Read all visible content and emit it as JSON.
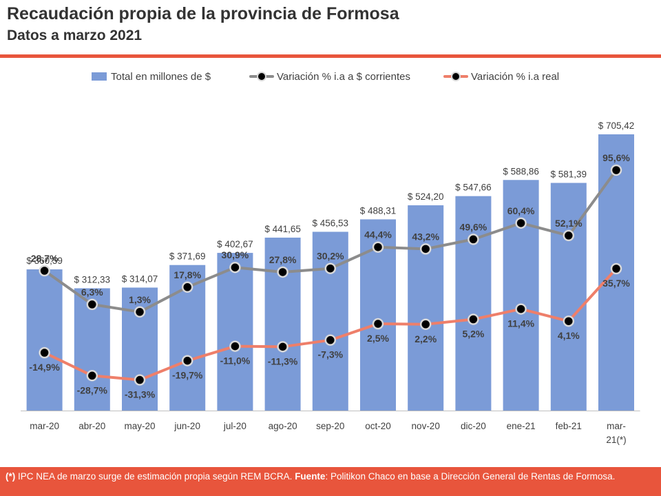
{
  "header": {
    "title": "Recaudación propia de la provincia de Formosa",
    "subtitle": "Datos a marzo 2021"
  },
  "colors": {
    "accent": "#e8553c",
    "bars": "#7b9bd7",
    "line_corrientes": "#8c8c8c",
    "line_real": "#ee7f6a"
  },
  "chart_data": {
    "type": "bar",
    "categories": [
      "mar-20",
      "abr-20",
      "may-20",
      "jun-20",
      "jul-20",
      "ago-20",
      "sep-20",
      "oct-20",
      "nov-20",
      "dic-20",
      "ene-21",
      "feb-21",
      "mar-21(*)"
    ],
    "series": [
      {
        "name": "Total en millones de $",
        "type": "bar",
        "values": [
          360.59,
          312.33,
          314.07,
          371.69,
          402.67,
          441.65,
          456.53,
          488.31,
          524.2,
          547.66,
          588.86,
          581.39,
          705.42
        ],
        "labels": [
          "$ 360,59",
          "$ 312,33",
          "$ 314,07",
          "$ 371,69",
          "$ 402,67",
          "$ 441,65",
          "$ 456,53",
          "$ 488,31",
          "$ 524,20",
          "$ 547,66",
          "$ 588,86",
          "$ 581,39",
          "$ 705,42"
        ]
      },
      {
        "name": "Variación % i.a a $ corrientes",
        "type": "line",
        "values": [
          28.7,
          6.3,
          1.3,
          17.8,
          30.9,
          27.8,
          30.2,
          44.4,
          43.2,
          49.6,
          60.4,
          52.1,
          95.6
        ],
        "labels": [
          "28,7%",
          "6,3%",
          "1,3%",
          "17,8%",
          "30,9%",
          "27,8%",
          "30,2%",
          "44,4%",
          "43,2%",
          "49,6%",
          "60,4%",
          "52,1%",
          "95,6%"
        ]
      },
      {
        "name": "Variación % i.a real",
        "type": "line",
        "values": [
          -14.9,
          -28.7,
          -31.3,
          -19.7,
          -11.0,
          -11.3,
          -7.3,
          2.5,
          2.2,
          5.2,
          11.4,
          4.1,
          35.7
        ],
        "labels": [
          "-14,9%",
          "-28,7%",
          "-31,3%",
          "-19,7%",
          "-11,0%",
          "-11,3%",
          "-7,3%",
          "2,5%",
          "2,2%",
          "5,2%",
          "11,4%",
          "4,1%",
          "35,7%"
        ]
      }
    ],
    "legend": "top",
    "grid": false
  },
  "footer": {
    "note_mark": "(*)",
    "note_text": " IPC NEA de marzo surge de estimación propia según REM BCRA. ",
    "source_label": "Fuente",
    "source_text": ": Politikon Chaco en base a Dirección General de Rentas de Formosa."
  }
}
